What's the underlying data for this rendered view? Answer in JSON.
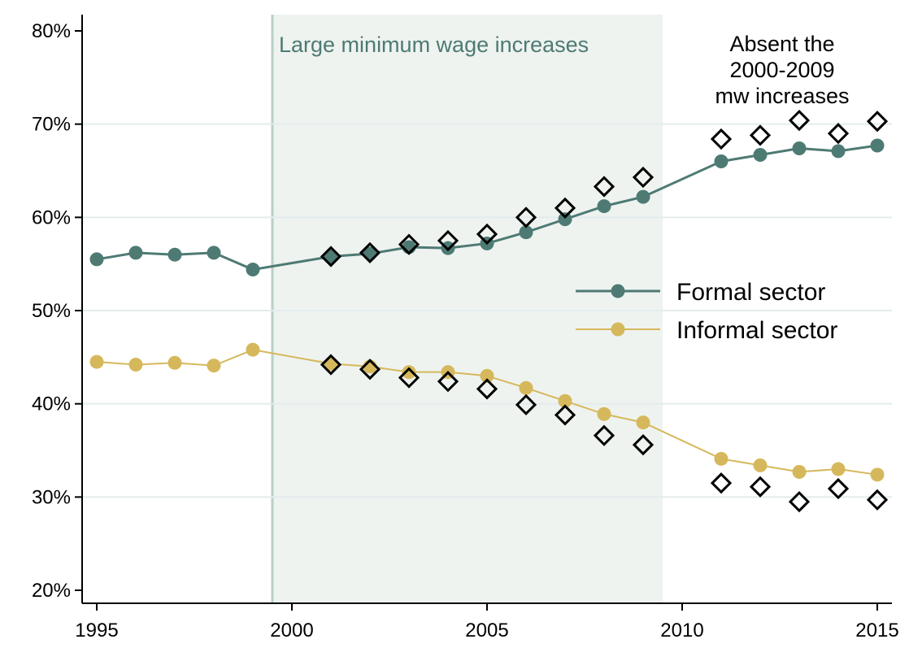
{
  "chart_data": {
    "type": "line",
    "title": "",
    "xlabel": "",
    "ylabel": "",
    "xlim": [
      1995,
      2015
    ],
    "ylim": [
      0.2,
      0.8
    ],
    "x_ticks": [
      1995,
      2000,
      2005,
      2010,
      2015
    ],
    "x_tick_labels": [
      "1995",
      "2000",
      "2005",
      "2010",
      "2015"
    ],
    "y_ticks": [
      0.2,
      0.3,
      0.4,
      0.5,
      0.6,
      0.7,
      0.8
    ],
    "y_tick_labels": [
      "20%",
      "30%",
      "40%",
      "50%",
      "60%",
      "70%",
      "80%"
    ],
    "grid": "horizontal",
    "legend_position": "right",
    "shaded_region": {
      "x_start": 1999.5,
      "x_end": 2009.5,
      "label": "Large minimum wage increases",
      "color": "#eef3ef",
      "line_color": "#b7d0c6",
      "label_color": "#4e7a74"
    },
    "annotation": {
      "lines": [
        "Absent the",
        "2000-2009",
        "mw increases"
      ]
    },
    "series": [
      {
        "name": "Formal sector",
        "color": "#4e7a74",
        "marker": "circle",
        "points": [
          [
            1995,
            0.555
          ],
          [
            1996,
            0.562
          ],
          [
            1997,
            0.56
          ],
          [
            1998,
            0.562
          ],
          [
            1999,
            0.544
          ],
          [
            2001,
            0.558
          ],
          [
            2002,
            0.561
          ],
          [
            2003,
            0.568
          ],
          [
            2004,
            0.567
          ],
          [
            2005,
            0.572
          ],
          [
            2006,
            0.584
          ],
          [
            2007,
            0.598
          ],
          [
            2008,
            0.612
          ],
          [
            2009,
            0.622
          ],
          [
            2011,
            0.66
          ],
          [
            2012,
            0.667
          ],
          [
            2013,
            0.674
          ],
          [
            2014,
            0.671
          ],
          [
            2015,
            0.677
          ]
        ]
      },
      {
        "name": "Informal sector",
        "color": "#d6b85c",
        "marker": "circle",
        "points": [
          [
            1995,
            0.445
          ],
          [
            1996,
            0.442
          ],
          [
            1997,
            0.444
          ],
          [
            1998,
            0.441
          ],
          [
            1999,
            0.458
          ],
          [
            2001,
            0.443
          ],
          [
            2002,
            0.44
          ],
          [
            2003,
            0.434
          ],
          [
            2004,
            0.434
          ],
          [
            2005,
            0.43
          ],
          [
            2006,
            0.417
          ],
          [
            2007,
            0.403
          ],
          [
            2008,
            0.389
          ],
          [
            2009,
            0.38
          ],
          [
            2011,
            0.341
          ],
          [
            2012,
            0.334
          ],
          [
            2013,
            0.327
          ],
          [
            2014,
            0.33
          ],
          [
            2015,
            0.324
          ]
        ]
      },
      {
        "name": "",
        "color": "#000000",
        "marker": "diamond",
        "points": [
          [
            2001,
            0.558
          ],
          [
            2002,
            0.562
          ],
          [
            2003,
            0.571
          ],
          [
            2004,
            0.575
          ],
          [
            2005,
            0.582
          ],
          [
            2006,
            0.6
          ],
          [
            2007,
            0.61
          ],
          [
            2008,
            0.633
          ],
          [
            2009,
            0.643
          ],
          [
            2011,
            0.684
          ],
          [
            2012,
            0.688
          ],
          [
            2013,
            0.704
          ],
          [
            2014,
            0.69
          ],
          [
            2015,
            0.703
          ]
        ]
      },
      {
        "name": "",
        "color": "#000000",
        "marker": "diamond",
        "points": [
          [
            2001,
            0.442
          ],
          [
            2002,
            0.437
          ],
          [
            2003,
            0.428
          ],
          [
            2004,
            0.424
          ],
          [
            2005,
            0.416
          ],
          [
            2006,
            0.399
          ],
          [
            2007,
            0.388
          ],
          [
            2008,
            0.366
          ],
          [
            2009,
            0.356
          ],
          [
            2011,
            0.315
          ],
          [
            2012,
            0.311
          ],
          [
            2013,
            0.295
          ],
          [
            2014,
            0.309
          ],
          [
            2015,
            0.297
          ]
        ]
      }
    ],
    "legend": [
      {
        "name": "Formal sector",
        "color": "#4e7a74"
      },
      {
        "name": "Informal sector",
        "color": "#d6b85c"
      }
    ]
  }
}
